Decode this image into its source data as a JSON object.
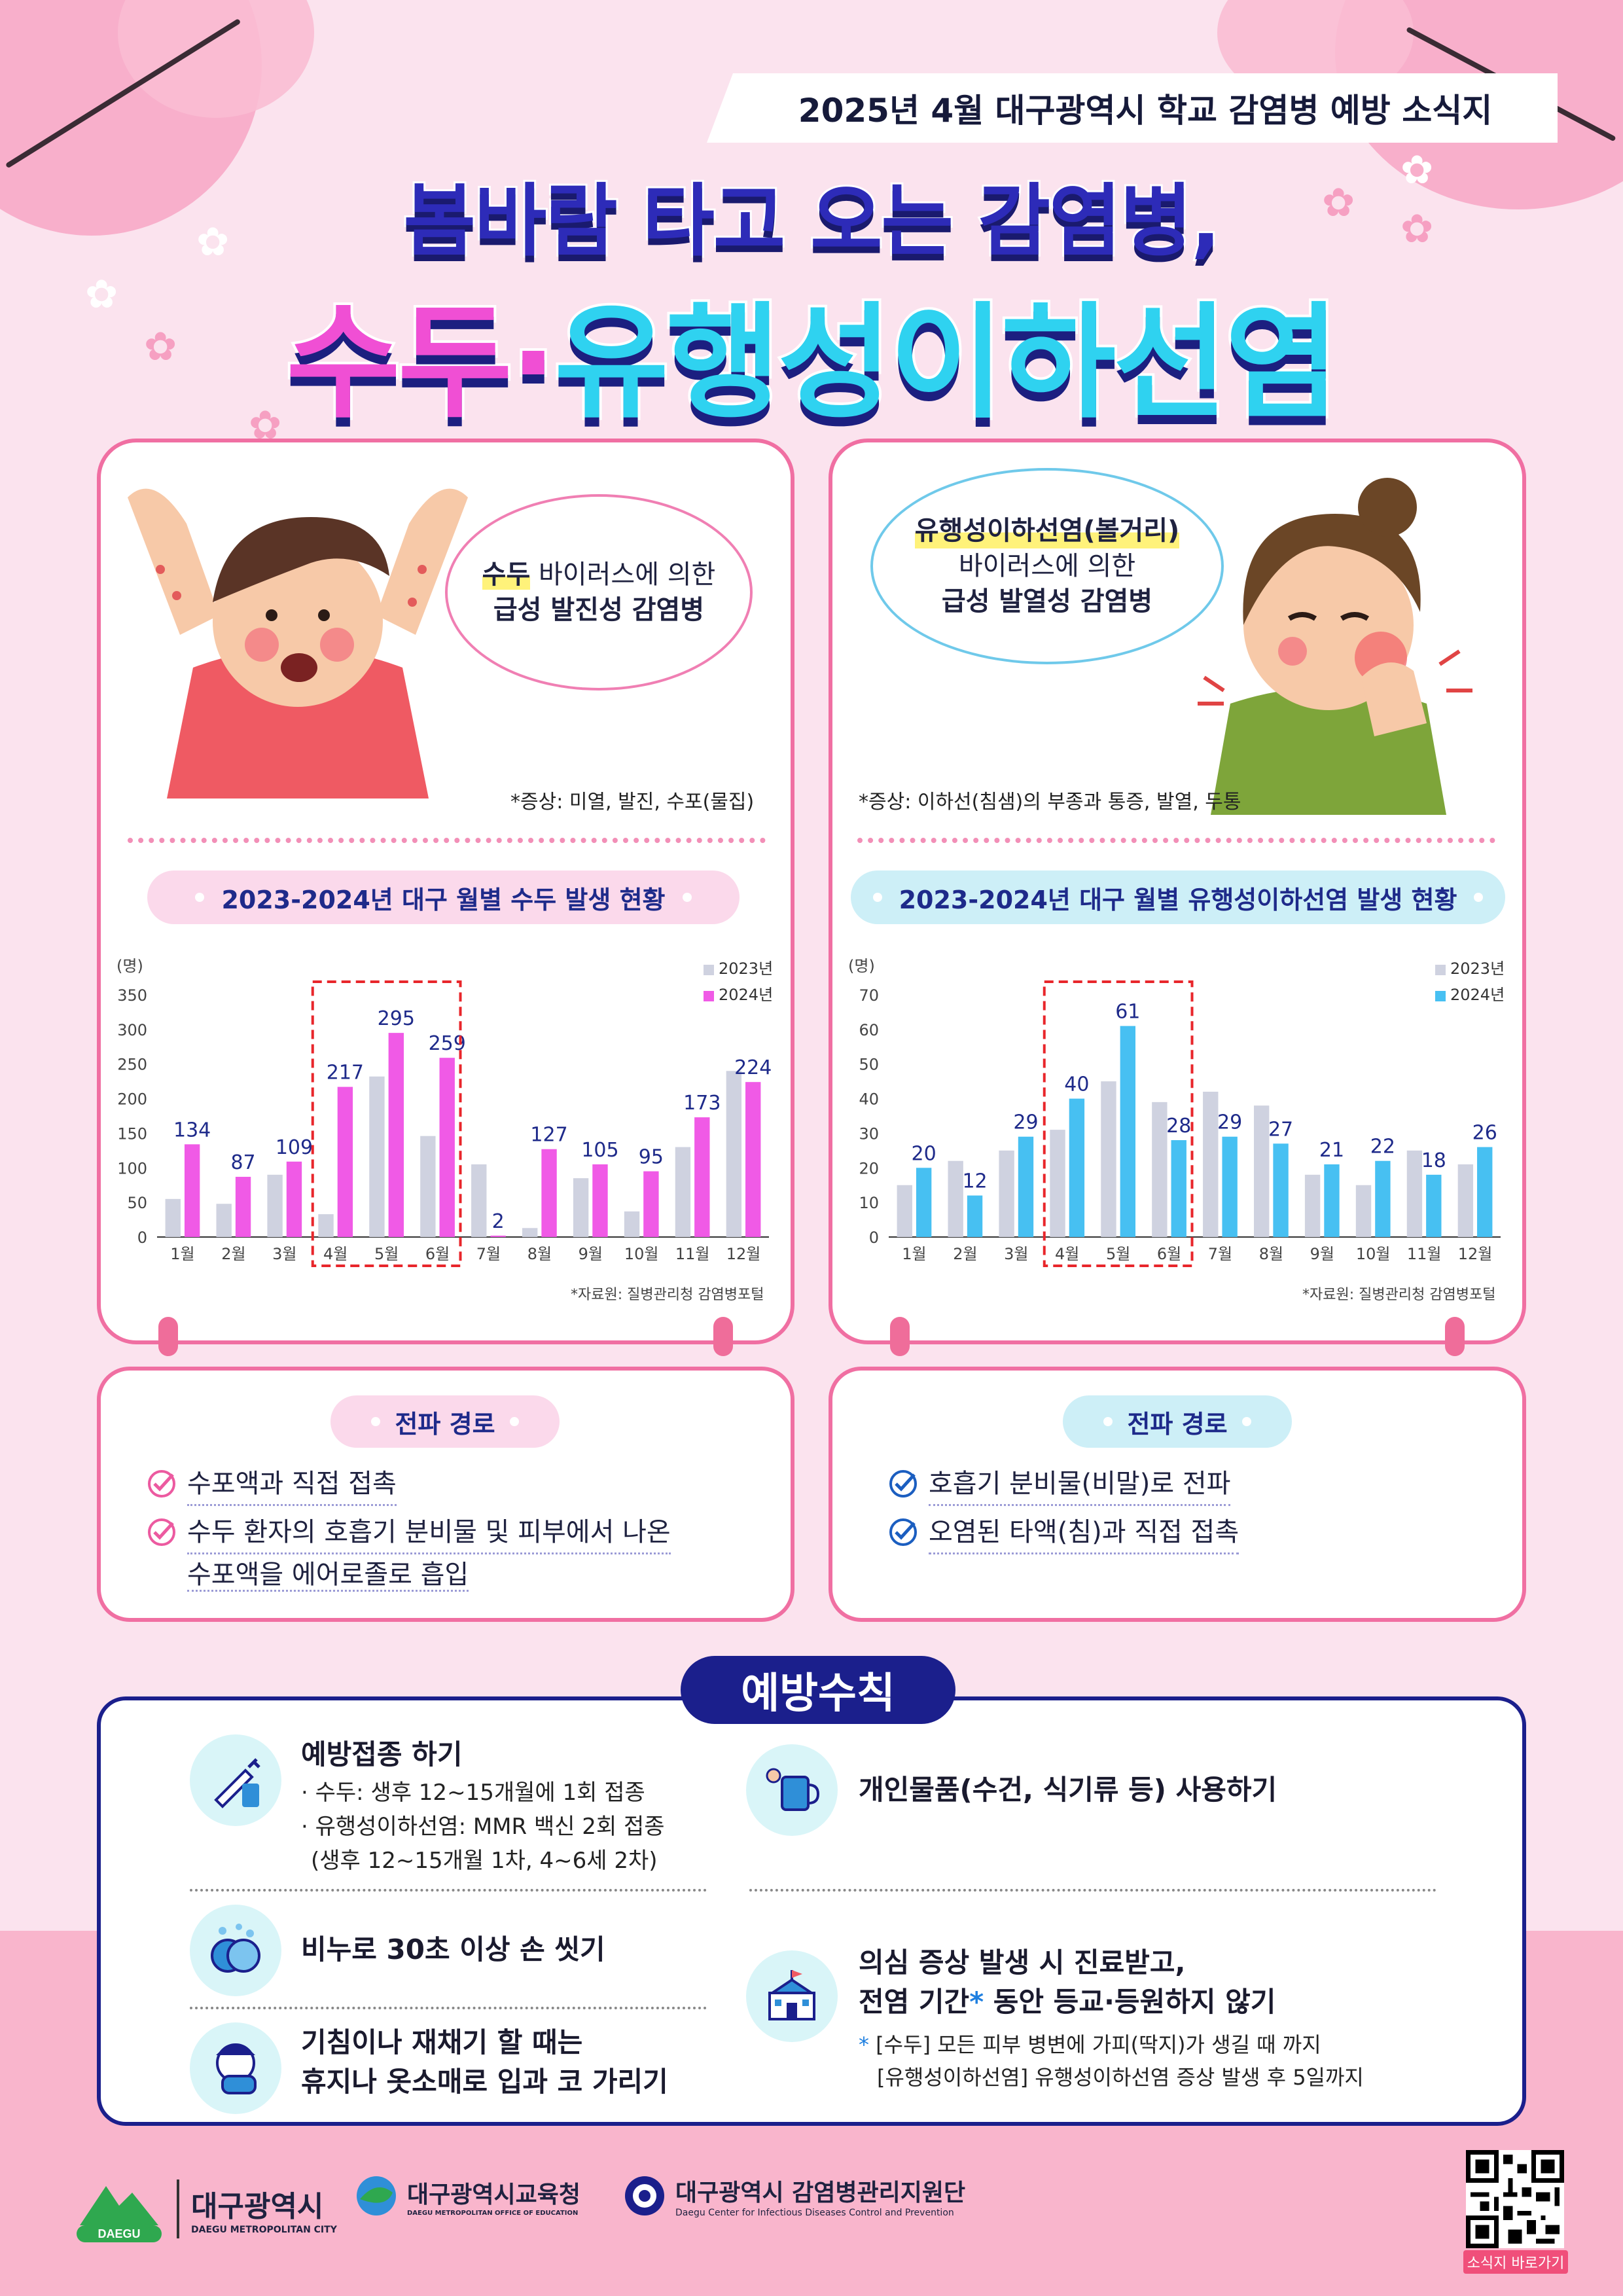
{
  "header": {
    "ribbon": "2025년 4월 대구광역시 학교 감염병 예방 소식지",
    "title_line1": "봄바람 타고 오는 감염병,",
    "title_pink": "수두",
    "title_sep": "·",
    "title_blue": "유행성이하선염"
  },
  "colors": {
    "pink": "#f04fd4",
    "blue": "#2fd2f0",
    "navy": "#1b1f8c",
    "card_border": "#f06fa2",
    "bar_2023": "#cfd2e0",
    "bar_2024_pink": "#f05ae6",
    "bar_2024_blue": "#47c0f2"
  },
  "left_card": {
    "bubble_l1a": "수두",
    "bubble_l1b": " 바이러스에 의한",
    "bubble_l2": "급성 발진성 감염병",
    "symptom": "*증상: 미열, 발진, 수포(물집)",
    "chart_title": "2023-2024년 대구 월별 수두 발생 현황",
    "source": "*자료원: 질병관리청 감염병포털"
  },
  "right_card": {
    "bubble_l1": "유행성이하선염(볼거리)",
    "bubble_l2": "바이러스에 의한",
    "bubble_l3": "급성 발열성 감염병",
    "symptom": "*증상: 이하선(침샘)의 부종과 통증, 발열, 두통",
    "chart_title": "2023-2024년 대구 월별 유행성이하선염 발생 현황",
    "source": "*자료원: 질병관리청 감염병포털"
  },
  "chart_data": [
    {
      "type": "bar",
      "ylabel": "(명)",
      "categories": [
        "1월",
        "2월",
        "3월",
        "4월",
        "5월",
        "6월",
        "7월",
        "8월",
        "9월",
        "10월",
        "11월",
        "12월"
      ],
      "ylim": [
        0,
        350
      ],
      "yticks": [
        0,
        50,
        100,
        150,
        200,
        250,
        300,
        350
      ],
      "series": [
        {
          "name": "2023년",
          "values": [
            55,
            48,
            90,
            33,
            232,
            146,
            105,
            13,
            85,
            37,
            130,
            240
          ]
        },
        {
          "name": "2024년",
          "values": [
            134,
            87,
            109,
            217,
            295,
            259,
            2,
            127,
            105,
            95,
            173,
            224
          ]
        }
      ],
      "highlight": [
        "4월",
        "6월"
      ],
      "legend": "top-right"
    },
    {
      "type": "bar",
      "ylabel": "(명)",
      "categories": [
        "1월",
        "2월",
        "3월",
        "4월",
        "5월",
        "6월",
        "7월",
        "8월",
        "9월",
        "10월",
        "11월",
        "12월"
      ],
      "ylim": [
        0,
        70
      ],
      "yticks": [
        0,
        10,
        20,
        30,
        40,
        50,
        60,
        70
      ],
      "series": [
        {
          "name": "2023년",
          "values": [
            15,
            22,
            25,
            31,
            45,
            39,
            42,
            38,
            18,
            15,
            25,
            21
          ]
        },
        {
          "name": "2024년",
          "values": [
            20,
            12,
            29,
            40,
            61,
            28,
            29,
            27,
            21,
            22,
            18,
            26
          ]
        }
      ],
      "highlight": [
        "4월",
        "6월"
      ],
      "legend": "top-right"
    }
  ],
  "left_route": {
    "title": "전파 경로",
    "items": [
      "수포액과 직접 접촉",
      "수두 환자의 호흡기 분비물 및 피부에서 나온",
      "수포액을 에어로졸로 흡입"
    ]
  },
  "right_route": {
    "title": "전파 경로",
    "items": [
      "호흡기 분비물(비말)로 전파",
      "오염된 타액(침)과 직접 접촉"
    ]
  },
  "prevention": {
    "title": "예방수칙",
    "vaccine_head": "예방접종 하기",
    "vaccine_sub1": "· 수두: 생후 12~15개월에 1회 접종",
    "vaccine_sub2": "· 유행성이하선염: MMR 백신 2회 접종",
    "vaccine_sub3": "(생후 12~15개월 1차, 4~6세 2차)",
    "personal": "개인물품(수건, 식기류 등) 사용하기",
    "handwash": "비누로 30초 이상 손 씻기",
    "cough1": "기침이나 재채기 할 때는",
    "cough2": "휴지나 옷소매로 입과 코 가리기",
    "symptom1": "의심 증상 발생 시 진료받고,",
    "symptom2a": "전염 기간",
    "symptom2b": "*",
    "symptom2c": " 동안 등교·등원하지 않기",
    "note_star": "*",
    "note1": " [수두] 모든 피부 병변에 가피(딱지)가 생길 때 까지",
    "note2": "[유행성이하선염] 유행성이하선염 증상 발생 후 5일까지"
  },
  "footer": {
    "daegu": "대구광역시",
    "daegu_en": "DAEGU METROPOLITAN CITY",
    "daegu_badge": "DAEGU",
    "edu": "대구광역시교육청",
    "edu_en": "DAEGU METROPOLITAN OFFICE OF EDUCATION",
    "cdc": "대구광역시 감염병관리지원단",
    "cdc_en": "Daegu Center for Infectious Diseases Control and Prevention",
    "qr_label": "소식지 바로가기"
  }
}
